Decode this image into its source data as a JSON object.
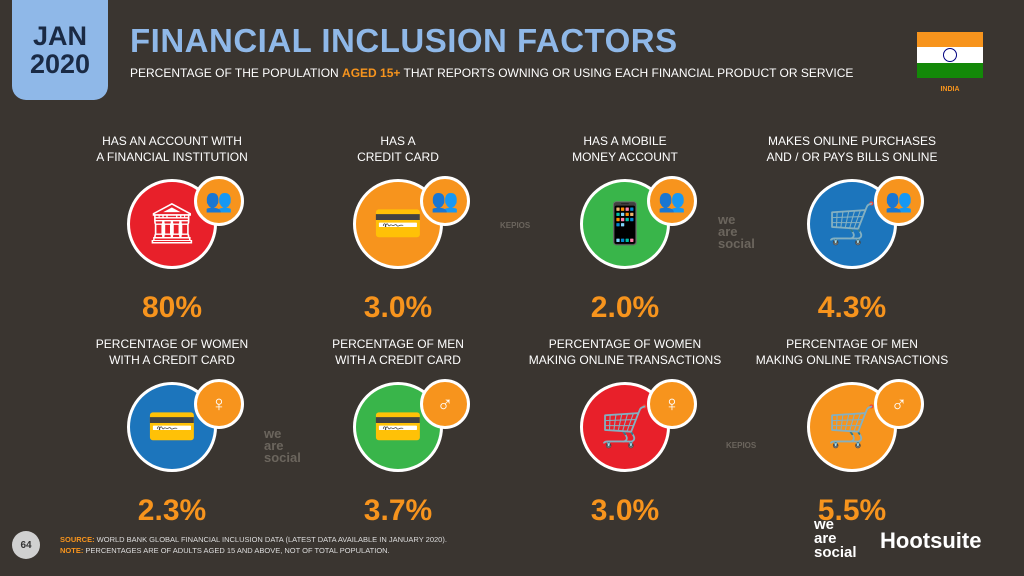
{
  "header": {
    "month": "JAN",
    "year": "2020",
    "title": "FINANCIAL INCLUSION FACTORS",
    "subtitle_pre": "PERCENTAGE OF THE POPULATION ",
    "subtitle_hl": "AGED 15+",
    "subtitle_post": " THAT REPORTS OWNING OR USING EACH FINANCIAL PRODUCT OR SERVICE",
    "country": "INDIA"
  },
  "metrics": [
    {
      "label1": "HAS AN ACCOUNT WITH",
      "label2": "A FINANCIAL INSTITUTION",
      "value": "80%",
      "color": "#e8202a",
      "icon": "bank-icon",
      "badge": "people-icon"
    },
    {
      "label1": "HAS A",
      "label2": "CREDIT CARD",
      "value": "3.0%",
      "color": "#f7941d",
      "icon": "credit-card-icon",
      "badge": "people-icon"
    },
    {
      "label1": "HAS A MOBILE",
      "label2": "MONEY ACCOUNT",
      "value": "2.0%",
      "color": "#39b54a",
      "icon": "mobile-money-icon",
      "badge": "people-icon"
    },
    {
      "label1": "MAKES ONLINE PURCHASES",
      "label2": "AND / OR PAYS BILLS ONLINE",
      "value": "4.3%",
      "color": "#1c75bc",
      "icon": "shopping-cart-icon",
      "badge": "people-icon"
    },
    {
      "label1": "PERCENTAGE OF WOMEN",
      "label2": "WITH A CREDIT CARD",
      "value": "2.3%",
      "color": "#1c75bc",
      "icon": "credit-card-icon",
      "badge": "female-icon"
    },
    {
      "label1": "PERCENTAGE OF MEN",
      "label2": "WITH A CREDIT CARD",
      "value": "3.7%",
      "color": "#39b54a",
      "icon": "credit-card-icon",
      "badge": "male-icon"
    },
    {
      "label1": "PERCENTAGE OF WOMEN",
      "label2": "MAKING ONLINE TRANSACTIONS",
      "value": "3.0%",
      "color": "#e8202a",
      "icon": "shopping-cart-icon",
      "badge": "female-icon"
    },
    {
      "label1": "PERCENTAGE OF MEN",
      "label2": "MAKING ONLINE TRANSACTIONS",
      "value": "5.5%",
      "color": "#f7941d",
      "icon": "shopping-cart-icon",
      "badge": "male-icon"
    }
  ],
  "footer": {
    "page": "64",
    "source_label": "SOURCE:",
    "source_text": " WORLD BANK GLOBAL FINANCIAL INCLUSION DATA (LATEST DATA AVAILABLE IN JANUARY 2020).",
    "note_label": "NOTE:",
    "note_text": " PERCENTAGES ARE OF ADULTS AGED 15 AND ABOVE, NOT OF TOTAL POPULATION.",
    "brand1": "we are social",
    "brand2": "Hootsuite"
  },
  "watermarks": [
    "we are social",
    "KEPIOS"
  ]
}
